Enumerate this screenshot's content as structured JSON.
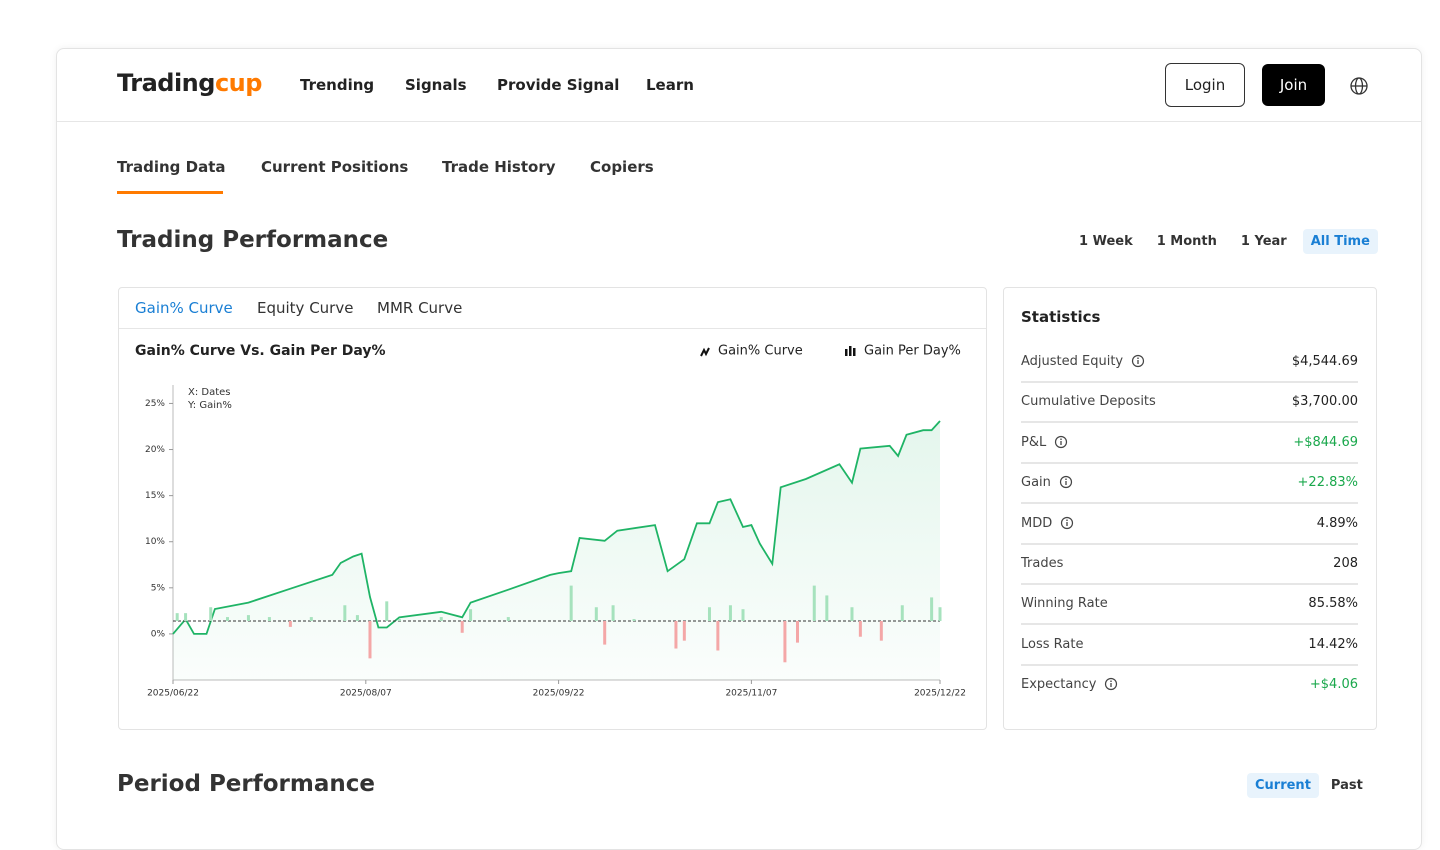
{
  "nav": {
    "brand": {
      "first": "Trading",
      "second": "cup"
    },
    "links": [
      "Trending",
      "Signals",
      "Provide Signal",
      "Learn"
    ],
    "login": "Login",
    "join": "Join"
  },
  "tabs": {
    "items": [
      "Trading Data",
      "Current Positions",
      "Trade History",
      "Copiers"
    ],
    "active": 0
  },
  "performance": {
    "title": "Trading Performance",
    "ranges": [
      "1 Week",
      "1 Month",
      "1 Year",
      "All Time"
    ],
    "active_range": 3
  },
  "chart_tabs": {
    "items": [
      "Gain% Curve",
      "Equity Curve",
      "MMR Curve"
    ],
    "active": 0
  },
  "chart_data": {
    "type": "line",
    "title": "Gain% Curve Vs. Gain Per Day%",
    "annotations": [
      "X: Dates",
      "Y: Gain%"
    ],
    "xlim": [
      "2025/06/22",
      "2025/12/22"
    ],
    "xticks": [
      "2025/06/22",
      "2025/08/07",
      "2025/09/22",
      "2025/11/07",
      "2025/12/22"
    ],
    "ylim": [
      -5,
      27
    ],
    "yticks": [
      {
        "value": 0,
        "label": "0%"
      },
      {
        "value": 5,
        "label": "5%"
      },
      {
        "value": 10,
        "label": "10%"
      },
      {
        "value": 15,
        "label": "15%"
      },
      {
        "value": 20,
        "label": "20%"
      },
      {
        "value": 25,
        "label": "25%"
      }
    ],
    "y2lim": [
      -1.5,
      6
    ],
    "series": [
      {
        "name": "Gain% Curve",
        "type": "line",
        "color": "#1fb466",
        "x": [
          "2025/06/22",
          "2025/06/25",
          "2025/06/27",
          "2025/06/30",
          "2025/07/02",
          "2025/07/10",
          "2025/07/20",
          "2025/07/30",
          "2025/08/01",
          "2025/08/04",
          "2025/08/06",
          "2025/08/08",
          "2025/08/10",
          "2025/08/12",
          "2025/08/15",
          "2025/08/25",
          "2025/08/30",
          "2025/09/01",
          "2025/09/10",
          "2025/09/20",
          "2025/09/22",
          "2025/09/25",
          "2025/09/27",
          "2025/10/03",
          "2025/10/06",
          "2025/10/15",
          "2025/10/18",
          "2025/10/22",
          "2025/10/25",
          "2025/10/28",
          "2025/10/30",
          "2025/11/02",
          "2025/11/05",
          "2025/11/07",
          "2025/11/09",
          "2025/11/12",
          "2025/11/14",
          "2025/11/20",
          "2025/11/28",
          "2025/12/01",
          "2025/12/03",
          "2025/12/10",
          "2025/12/12",
          "2025/12/14",
          "2025/12/18",
          "2025/12/20",
          "2025/12/22"
        ],
        "values": [
          0,
          1.6,
          0,
          0,
          2.7,
          3.4,
          4.9,
          6.4,
          7.7,
          8.4,
          8.7,
          4,
          0.7,
          0.7,
          1.8,
          2.4,
          1.8,
          3.4,
          4.8,
          6.4,
          6.6,
          6.8,
          10.4,
          10.1,
          11.2,
          11.8,
          6.8,
          8.1,
          12,
          12,
          14.3,
          14.6,
          11.6,
          11.8,
          9.8,
          7.6,
          15.9,
          16.8,
          18.4,
          16.4,
          20.1,
          20.4,
          19.3,
          21.6,
          22.1,
          22.1,
          23.1
        ]
      },
      {
        "name": "Gain Per Day%",
        "type": "bar",
        "axis": "y2",
        "color": "#a6e2bd",
        "negative_color": "#f4a7a7",
        "x": [
          "2025/06/23",
          "2025/06/25",
          "2025/07/01",
          "2025/07/05",
          "2025/07/10",
          "2025/07/15",
          "2025/07/20",
          "2025/07/25",
          "2025/08/02",
          "2025/08/05",
          "2025/08/08",
          "2025/08/12",
          "2025/08/15",
          "2025/08/25",
          "2025/08/30",
          "2025/09/01",
          "2025/09/10",
          "2025/09/25",
          "2025/10/01",
          "2025/10/03",
          "2025/10/05",
          "2025/10/10",
          "2025/10/20",
          "2025/10/22",
          "2025/10/28",
          "2025/10/30",
          "2025/11/02",
          "2025/11/05",
          "2025/11/15",
          "2025/11/18",
          "2025/11/22",
          "2025/11/25",
          "2025/12/01",
          "2025/12/03",
          "2025/12/08",
          "2025/12/13",
          "2025/12/20",
          "2025/12/22"
        ],
        "values": [
          0.2,
          0.2,
          0.35,
          0.1,
          0.15,
          0.1,
          -0.15,
          0.1,
          0.4,
          0.15,
          -0.95,
          0.5,
          0.05,
          0.1,
          -0.3,
          0.3,
          0.1,
          0.9,
          0.35,
          -0.6,
          0.4,
          0.05,
          -0.7,
          -0.5,
          0.35,
          -0.75,
          0.4,
          0.3,
          -1.05,
          -0.55,
          0.9,
          0.65,
          0.35,
          -0.4,
          -0.5,
          0.4,
          0.6,
          0.35
        ]
      }
    ]
  },
  "statistics": {
    "title": "Statistics",
    "rows": [
      {
        "label": "Adjusted Equity",
        "value": "$4,544.69",
        "info": true
      },
      {
        "label": "Cumulative Deposits",
        "value": "$3,700.00",
        "info": false
      },
      {
        "label": "P&L",
        "value": "+$844.69",
        "info": true,
        "color": "#1aa84c"
      },
      {
        "label": "Gain",
        "value": "+22.83%",
        "info": true,
        "color": "#1aa84c"
      },
      {
        "label": "MDD",
        "value": "4.89%",
        "info": true
      },
      {
        "label": "Trades",
        "value": "208",
        "info": false
      },
      {
        "label": "Winning Rate",
        "value": "85.58%",
        "info": false
      },
      {
        "label": "Loss Rate",
        "value": "14.42%",
        "info": false
      },
      {
        "label": "Expectancy",
        "value": "+$4.06",
        "info": true,
        "color": "#1aa84c"
      }
    ]
  },
  "period": {
    "title": "Period Performance",
    "options": [
      "Current",
      "Past"
    ],
    "active": 0
  }
}
